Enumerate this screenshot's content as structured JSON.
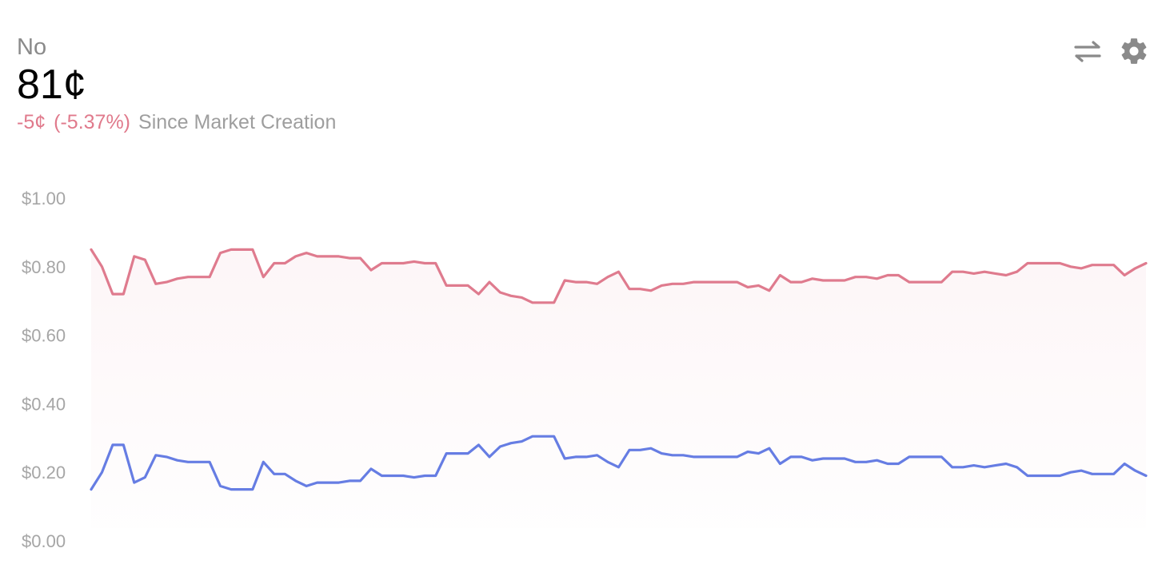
{
  "header": {
    "outcome": "No",
    "price": "81¢",
    "change_abs": "-5¢",
    "change_pct": "(-5.37%)",
    "since": "Since Market Creation"
  },
  "icons": {
    "swap": "swap-arrows-icon",
    "settings": "gear-icon"
  },
  "colors": {
    "no": "#df7b8e",
    "yes": "#667de3",
    "change": "#e07a8c",
    "muted": "#9e9e9e"
  },
  "chart_data": {
    "type": "line",
    "y_tick_labels": [
      "$0.00",
      "$0.20",
      "$0.40",
      "$0.60",
      "$0.80",
      "$1.00"
    ],
    "y_ticks": [
      0,
      0.2,
      0.4,
      0.6,
      0.8,
      1.0
    ],
    "ylim": [
      0,
      1.0
    ],
    "grid": false,
    "legend": "none",
    "series": [
      {
        "color": "#df7b8e",
        "fill": true,
        "values": [
          0.85,
          0.8,
          0.72,
          0.72,
          0.83,
          0.82,
          0.75,
          0.755,
          0.765,
          0.77,
          0.77,
          0.77,
          0.84,
          0.85,
          0.85,
          0.85,
          0.77,
          0.81,
          0.81,
          0.83,
          0.84,
          0.83,
          0.83,
          0.83,
          0.825,
          0.825,
          0.79,
          0.81,
          0.81,
          0.81,
          0.815,
          0.81,
          0.81,
          0.745,
          0.745,
          0.745,
          0.72,
          0.755,
          0.725,
          0.715,
          0.71,
          0.695,
          0.695,
          0.695,
          0.76,
          0.755,
          0.755,
          0.75,
          0.77,
          0.785,
          0.735,
          0.735,
          0.73,
          0.745,
          0.75,
          0.75,
          0.755,
          0.755,
          0.755,
          0.755,
          0.755,
          0.74,
          0.745,
          0.73,
          0.775,
          0.755,
          0.755,
          0.765,
          0.76,
          0.76,
          0.76,
          0.77,
          0.77,
          0.765,
          0.775,
          0.775,
          0.755,
          0.755,
          0.755,
          0.755,
          0.785,
          0.785,
          0.78,
          0.785,
          0.78,
          0.775,
          0.785,
          0.81,
          0.81,
          0.81,
          0.81,
          0.8,
          0.795,
          0.805,
          0.805,
          0.805,
          0.775,
          0.795,
          0.81
        ]
      },
      {
        "color": "#667de3",
        "fill": false,
        "values": [
          0.15,
          0.2,
          0.28,
          0.28,
          0.17,
          0.185,
          0.25,
          0.245,
          0.235,
          0.23,
          0.23,
          0.23,
          0.16,
          0.15,
          0.15,
          0.15,
          0.23,
          0.195,
          0.195,
          0.175,
          0.16,
          0.17,
          0.17,
          0.17,
          0.175,
          0.175,
          0.21,
          0.19,
          0.19,
          0.19,
          0.185,
          0.19,
          0.19,
          0.255,
          0.255,
          0.255,
          0.28,
          0.245,
          0.275,
          0.285,
          0.29,
          0.305,
          0.305,
          0.305,
          0.24,
          0.245,
          0.245,
          0.25,
          0.23,
          0.215,
          0.265,
          0.265,
          0.27,
          0.255,
          0.25,
          0.25,
          0.245,
          0.245,
          0.245,
          0.245,
          0.245,
          0.26,
          0.255,
          0.27,
          0.225,
          0.245,
          0.245,
          0.235,
          0.24,
          0.24,
          0.24,
          0.23,
          0.23,
          0.235,
          0.225,
          0.225,
          0.245,
          0.245,
          0.245,
          0.245,
          0.215,
          0.215,
          0.22,
          0.215,
          0.22,
          0.225,
          0.215,
          0.19,
          0.19,
          0.19,
          0.19,
          0.2,
          0.205,
          0.195,
          0.195,
          0.195,
          0.225,
          0.205,
          0.19
        ]
      }
    ]
  }
}
